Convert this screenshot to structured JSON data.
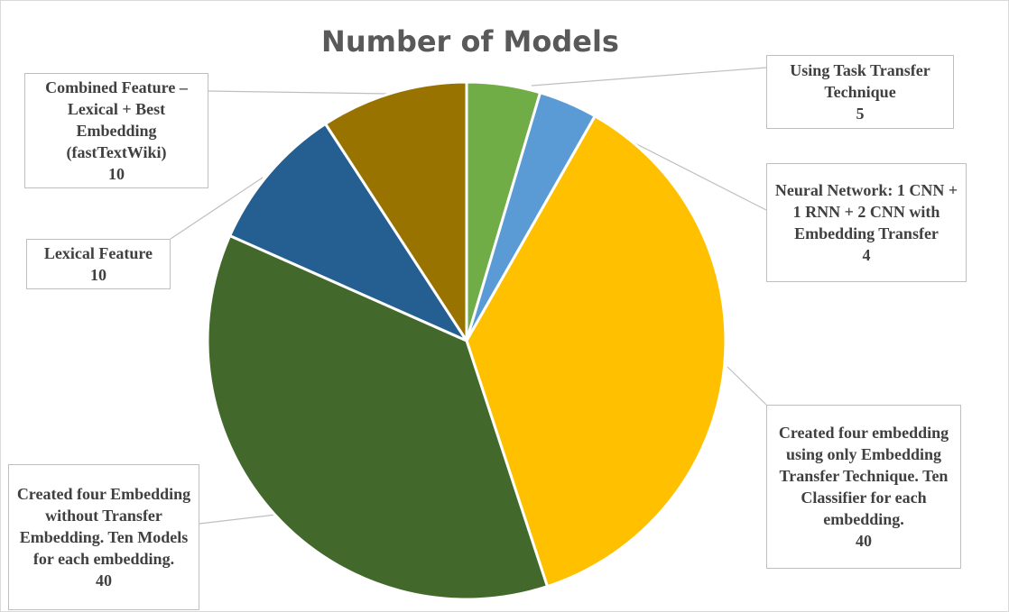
{
  "chart_data": {
    "type": "pie",
    "title": "Number of Models",
    "slices": [
      {
        "label": "Using Task Transfer Technique",
        "value": 5,
        "color": "#70ad47"
      },
      {
        "label": "Neural Network: 1 CNN + 1 RNN + 2 CNN with Embedding Transfer",
        "value": 4,
        "color": "#5b9bd5"
      },
      {
        "label": "Created four embedding using only Embedding Transfer Technique. Ten Classifier for each embedding.",
        "value": 40,
        "color": "#ffc000"
      },
      {
        "label": "Created four Embedding without Transfer Embedding. Ten Models for each embedding.",
        "value": 40,
        "color": "#43682b"
      },
      {
        "label": "Lexical Feature",
        "value": 10,
        "color": "#255e91"
      },
      {
        "label": "Combined Feature – Lexical + Best Embedding (fastTextWiki)",
        "value": 10,
        "color": "#997300"
      }
    ]
  }
}
